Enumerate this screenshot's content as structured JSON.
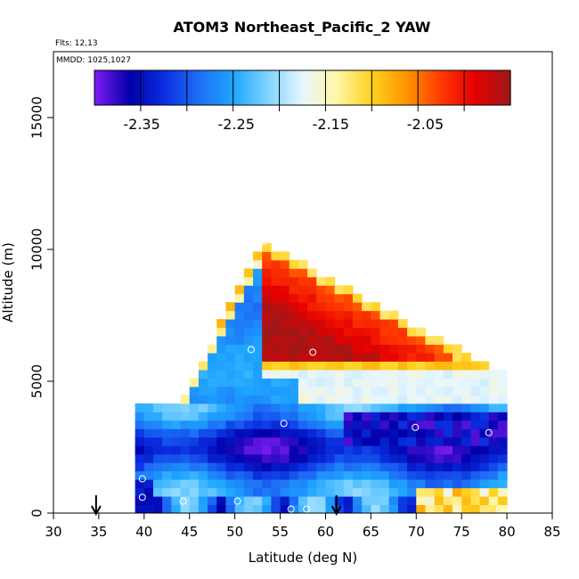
{
  "chart_data": {
    "type": "heatmap",
    "title": "ATOM3 Northeast_Pacific_2 YAW",
    "flights_label": "Flts: 12,13",
    "dates_label": "MMDD: 1025,1027",
    "xlabel": "Latitude (deg N)",
    "ylabel": "Altitude (m)",
    "xlim": [
      30,
      85
    ],
    "ylim": [
      0,
      17500
    ],
    "x_ticks": [
      "30",
      "35",
      "40",
      "45",
      "50",
      "55",
      "60",
      "65",
      "70",
      "75",
      "80",
      "85"
    ],
    "y_ticks": [
      "0",
      "5000",
      "10000",
      "15000"
    ],
    "grid": false,
    "colorbar": {
      "placement": "top-inside",
      "range": [
        -2.4,
        -1.96
      ],
      "tick_values": [
        -2.35,
        -2.25,
        -2.15,
        -2.05
      ],
      "tick_labels": [
        "-2.35",
        "-2.25",
        "-2.15",
        "-2.05"
      ],
      "colors": [
        "#7a1cf2",
        "#0000a8",
        "#0a2ee0",
        "#1e6ff5",
        "#1ea6ff",
        "#7fd3ff",
        "#e8f6ff",
        "#fff6a8",
        "#ffd21e",
        "#ff9600",
        "#ff3a00",
        "#e60000",
        "#a01818"
      ]
    },
    "regions": {
      "left_triangle_top": [
        53.2,
        10300
      ],
      "left_triangle_base": [
        [
          39.5,
          1300
        ],
        [
          53.2,
          1300
        ]
      ],
      "upper_wedge": {
        "apex": [
          53.2,
          10300
        ],
        "right": [
          80.0,
          5200
        ]
      },
      "lower_block": {
        "lat_range": [
          39.5,
          79.5
        ],
        "alt_range": [
          0,
          4200
        ]
      }
    },
    "markers": [
      {
        "x": 34.7,
        "y": 0,
        "label": "arrow"
      },
      {
        "x": 61.2,
        "y": 0,
        "label": "arrow"
      }
    ],
    "sample_points": [
      [
        39.8,
        1300
      ],
      [
        39.8,
        600
      ],
      [
        44.3,
        450
      ],
      [
        50.3,
        450
      ],
      [
        51.8,
        6200
      ],
      [
        55.4,
        3400
      ],
      [
        58.6,
        6100
      ],
      [
        56.2,
        150
      ],
      [
        57.9,
        150
      ],
      [
        69.9,
        3250
      ],
      [
        78.0,
        3050
      ],
      [
        79.2,
        150
      ],
      [
        53.2,
        10300
      ]
    ]
  }
}
